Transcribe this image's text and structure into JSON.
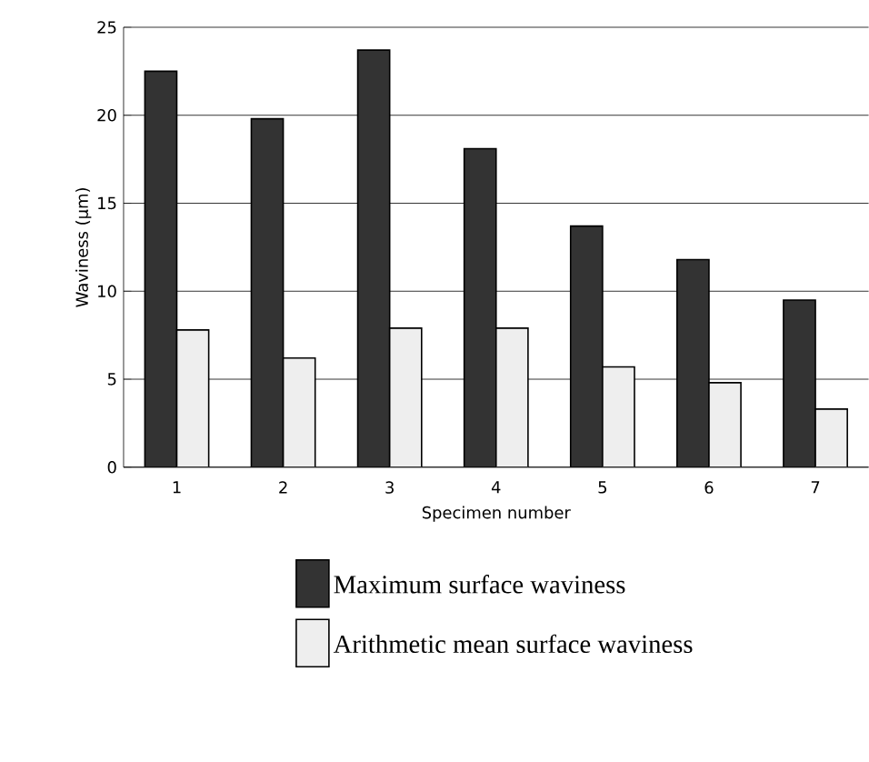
{
  "chart_data": {
    "type": "bar",
    "xlabel": "Specimen number",
    "ylabel": "Waviness (μm)",
    "categories": [
      "1",
      "2",
      "3",
      "4",
      "5",
      "6",
      "7"
    ],
    "series": [
      {
        "name": "Maximum surface waviness",
        "color": "#333333",
        "values": [
          22.5,
          19.8,
          23.7,
          18.1,
          13.7,
          11.8,
          9.5
        ]
      },
      {
        "name": "Arithmetic mean surface waviness",
        "color": "#eeeeee",
        "values": [
          7.8,
          6.2,
          7.9,
          7.9,
          5.7,
          4.8,
          3.3
        ]
      }
    ],
    "ylim": [
      0,
      25
    ],
    "yticks": [
      0,
      5,
      10,
      15,
      20,
      25
    ],
    "grid": "y",
    "legend": "bottom"
  }
}
